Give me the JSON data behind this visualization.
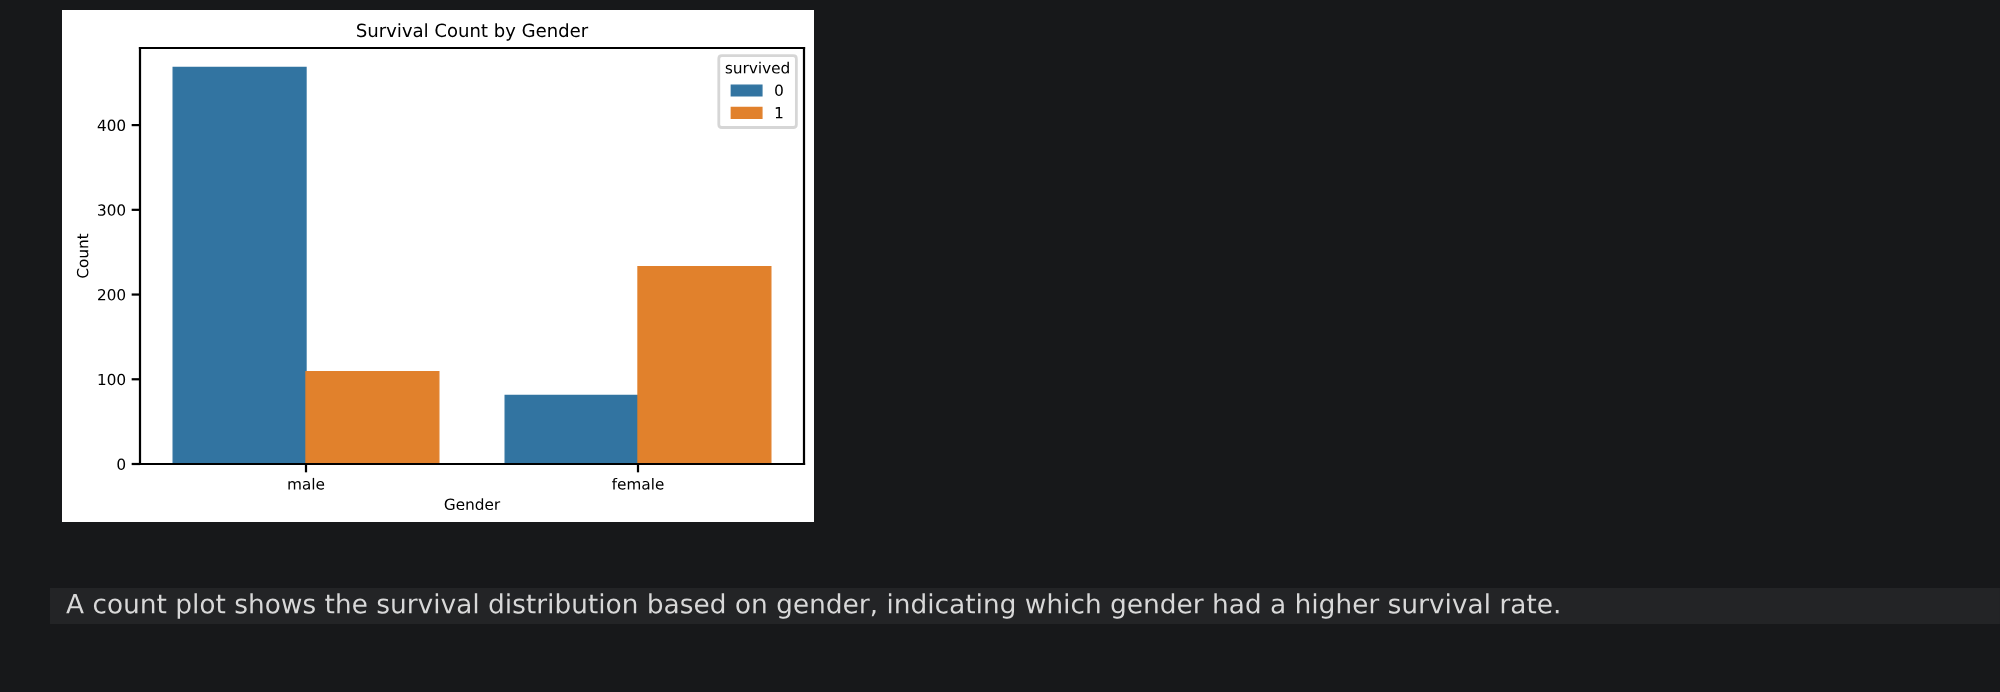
{
  "chart_data": {
    "type": "bar",
    "title": "Survival Count by Gender",
    "xlabel": "Gender",
    "ylabel": "Count",
    "categories": [
      "male",
      "female"
    ],
    "series": [
      {
        "name": "0",
        "color": "#3274a1",
        "values": [
          468,
          81
        ]
      },
      {
        "name": "1",
        "color": "#e1812c",
        "values": [
          109,
          233
        ]
      }
    ],
    "legend_title": "survived",
    "legend": "top right",
    "ylim": [
      0,
      491
    ],
    "yticks": [
      0,
      100,
      200,
      300,
      400
    ],
    "grid": false,
    "annotations": [
      "A count plot shows the survival distribution based on gender, indicating which gender had a higher survival rate."
    ]
  }
}
